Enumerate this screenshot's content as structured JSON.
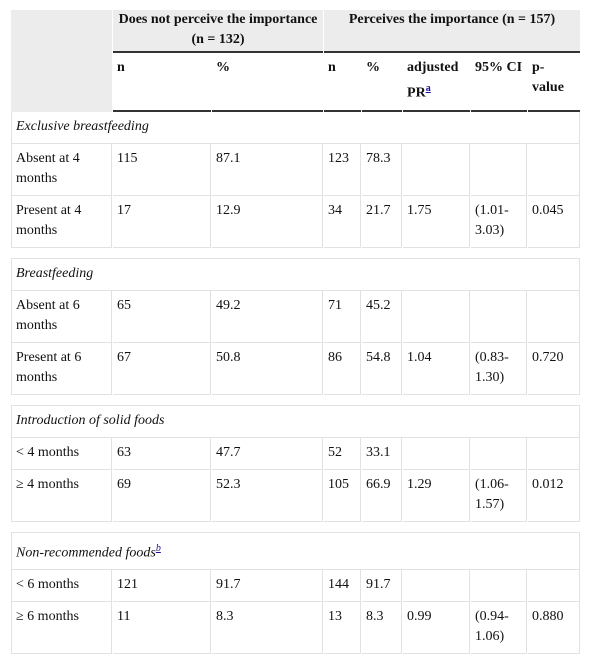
{
  "table": {
    "column_groups": [
      "Does not perceive the importance (n = 132)",
      "Perceives the importance (n = 157)"
    ],
    "columns": [
      {
        "text": "n"
      },
      {
        "text": "%"
      },
      {
        "text": "n"
      },
      {
        "text": "%"
      },
      {
        "text": "adjusted PR",
        "note": "a"
      },
      {
        "text": "95% CI"
      },
      {
        "text": "p-value"
      }
    ],
    "sections": [
      {
        "title": "Exclusive breastfeeding",
        "rows": [
          [
            "Absent at 4 months",
            "115",
            "87.1",
            "123",
            "78.3",
            null,
            null,
            null
          ],
          [
            "Present at 4 months",
            "17",
            "12.9",
            "34",
            "21.7",
            "1.75",
            "(1.01-3.03)",
            "0.045"
          ]
        ]
      },
      {
        "title": "Breastfeeding",
        "rows": [
          [
            "Absent at 6 months",
            "65",
            "49.2",
            "71",
            "45.2",
            null,
            null,
            null
          ],
          [
            "Present at 6 months",
            "67",
            "50.8",
            "86",
            "54.8",
            "1.04",
            "(0.83-1.30)",
            "0.720"
          ]
        ]
      },
      {
        "title": "Introduction of solid foods",
        "rows": [
          [
            "< 4 months",
            "63",
            "47.7",
            "52",
            "33.1",
            null,
            null,
            null
          ],
          [
            "≥ 4 months",
            "69",
            "52.3",
            "105",
            "66.9",
            "1.29",
            "(1.06-1.57)",
            "0.012"
          ]
        ]
      },
      {
        "title": "Non-recommended foods",
        "note": "b",
        "rows": [
          [
            "< 6 months",
            "121",
            "91.7",
            "144",
            "91.7",
            null,
            null,
            null
          ],
          [
            "≥ 6 months",
            "11",
            "8.3",
            "13",
            "8.3",
            "0.99",
            "(0.94-1.06)",
            "0.880"
          ]
        ]
      }
    ]
  }
}
